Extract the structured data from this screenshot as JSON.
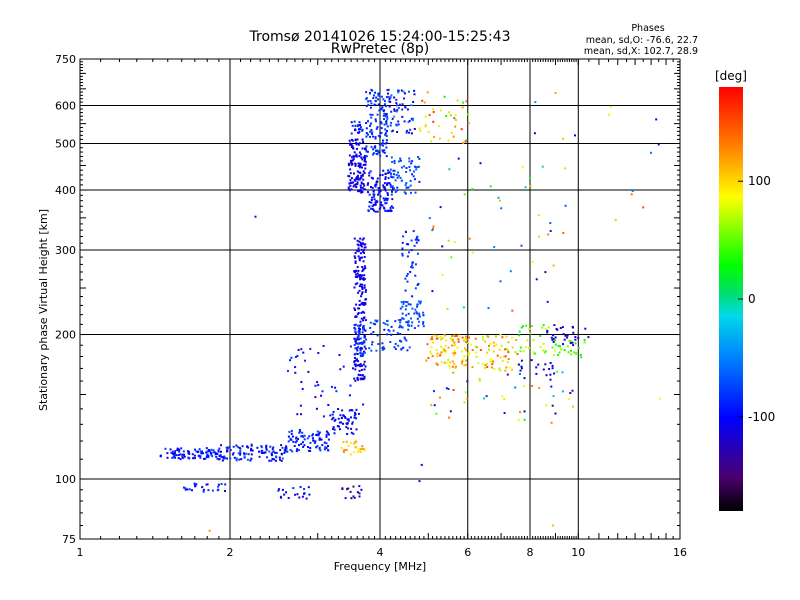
{
  "chart_data": {
    "type": "scatter",
    "title": "Tromsø 20141026 15:24:00-15:25:43",
    "subtitle": "RwPretec (8p)",
    "xlabel": "Frequency [MHz]",
    "ylabel": "Stationary phase Virtual Height [km]",
    "x_scale": "log",
    "y_scale": "log",
    "xlim": [
      1,
      16
    ],
    "ylim": [
      75,
      750
    ],
    "x_ticks": [
      1,
      2,
      4,
      6,
      8,
      10,
      16
    ],
    "x_tick_labels": [
      "1",
      "2",
      "4",
      "6",
      "8",
      "10",
      "16"
    ],
    "y_ticks": [
      75,
      100,
      200,
      300,
      400,
      500,
      600,
      750
    ],
    "y_tick_labels": [
      "75",
      "100",
      "200",
      "300",
      "400",
      "500",
      "600",
      "750"
    ],
    "grid": true,
    "stats_block": {
      "heading": "Phases",
      "line_o": "mean, sd,O: -76.6, 22.7",
      "line_x": "mean, sd,X: 102.7, 28.9"
    },
    "colorbar": {
      "label": "[deg]",
      "range": [
        -180,
        180
      ],
      "ticks": [
        100,
        0,
        -100
      ],
      "tick_labels": [
        "100",
        "0",
        "-100"
      ]
    },
    "point_clusters": [
      {
        "x": [
          1.45,
          1.9
        ],
        "y": [
          110,
          116
        ],
        "phase": [
          -70,
          -115
        ],
        "count": 90
      },
      {
        "x": [
          1.9,
          2.6
        ],
        "y": [
          109,
          118
        ],
        "phase": [
          -60,
          -130
        ],
        "count": 110
      },
      {
        "x": [
          2.6,
          3.2
        ],
        "y": [
          114,
          127
        ],
        "phase": [
          -70,
          -110
        ],
        "count": 80
      },
      {
        "x": [
          3.2,
          3.6
        ],
        "y": [
          124,
          140
        ],
        "phase": [
          -90,
          -115
        ],
        "count": 50
      },
      {
        "x": [
          3.35,
          3.75
        ],
        "y": [
          112,
          120
        ],
        "phase": [
          90,
          135
        ],
        "count": 25
      },
      {
        "x": [
          1.6,
          1.98
        ],
        "y": [
          93,
          98
        ],
        "phase": [
          -70,
          -115
        ],
        "count": 25
      },
      {
        "x": [
          2.5,
          2.9
        ],
        "y": [
          91,
          98
        ],
        "phase": [
          -80,
          -120
        ],
        "count": 20
      },
      {
        "x": [
          3.35,
          3.7
        ],
        "y": [
          91,
          97
        ],
        "phase": [
          -90,
          -170
        ],
        "count": 15
      },
      {
        "x": [
          2.6,
          3.7
        ],
        "y": [
          135,
          190
        ],
        "phase": [
          -80,
          -130
        ],
        "count": 45
      },
      {
        "x": [
          3.55,
          3.75
        ],
        "y": [
          160,
          320
        ],
        "phase": [
          -100,
          -120
        ],
        "count": 200
      },
      {
        "x": [
          3.55,
          3.75
        ],
        "y": [
          180,
          210
        ],
        "phase": [
          -70,
          -85
        ],
        "count": 40
      },
      {
        "x": [
          3.8,
          4.6
        ],
        "y": [
          185,
          215
        ],
        "phase": [
          -60,
          -90
        ],
        "count": 60
      },
      {
        "x": [
          4.4,
          4.9
        ],
        "y": [
          205,
          235
        ],
        "phase": [
          -60,
          -80
        ],
        "count": 50
      },
      {
        "x": [
          4.4,
          4.8
        ],
        "y": [
          240,
          330
        ],
        "phase": [
          -70,
          -100
        ],
        "count": 40
      },
      {
        "x": [
          4.95,
          6.0
        ],
        "y": [
          170,
          200
        ],
        "phase": [
          70,
          150
        ],
        "count": 90
      },
      {
        "x": [
          6.0,
          7.6
        ],
        "y": [
          168,
          200
        ],
        "phase": [
          60,
          150
        ],
        "count": 70
      },
      {
        "x": [
          7.6,
          9.4
        ],
        "y": [
          180,
          210
        ],
        "phase": [
          20,
          80
        ],
        "count": 40
      },
      {
        "x": [
          8.6,
          10.6
        ],
        "y": [
          190,
          210
        ],
        "phase": [
          -140,
          -100
        ],
        "count": 30
      },
      {
        "x": [
          9.5,
          10.4
        ],
        "y": [
          178,
          195
        ],
        "phase": [
          20,
          60
        ],
        "count": 15
      },
      {
        "x": [
          7.6,
          9.0
        ],
        "y": [
          160,
          180
        ],
        "phase": [
          -130,
          -100
        ],
        "count": 20
      },
      {
        "x": [
          3.45,
          3.75
        ],
        "y": [
          395,
          510
        ],
        "phase": [
          -100,
          -120
        ],
        "count": 130
      },
      {
        "x": [
          3.5,
          3.7
        ],
        "y": [
          520,
          560
        ],
        "phase": [
          -80,
          -110
        ],
        "count": 20
      },
      {
        "x": [
          3.78,
          4.25
        ],
        "y": [
          360,
          440
        ],
        "phase": [
          -85,
          -115
        ],
        "count": 110
      },
      {
        "x": [
          4.2,
          4.8
        ],
        "y": [
          390,
          470
        ],
        "phase": [
          -60,
          -90
        ],
        "count": 60
      },
      {
        "x": [
          3.75,
          4.15
        ],
        "y": [
          470,
          650
        ],
        "phase": [
          -70,
          -95
        ],
        "count": 120
      },
      {
        "x": [
          4.1,
          4.7
        ],
        "y": [
          520,
          650
        ],
        "phase": [
          -40,
          -130
        ],
        "count": 70
      },
      {
        "x": [
          4.8,
          6.1
        ],
        "y": [
          500,
          650
        ],
        "phase": [
          20,
          160
        ],
        "count": 40
      },
      {
        "x": [
          5.0,
          9.5
        ],
        "y": [
          220,
          480
        ],
        "phase": [
          -140,
          150
        ],
        "count": 45
      },
      {
        "x": [
          5.0,
          10.0
        ],
        "y": [
          130,
          170
        ],
        "phase": [
          -150,
          160
        ],
        "count": 45
      },
      {
        "x": [
          8.0,
          14.5
        ],
        "y": [
          300,
          650
        ],
        "phase": [
          -110,
          130
        ],
        "count": 12
      }
    ],
    "notable_points": [
      {
        "x": 2.25,
        "y": 352,
        "phase": -120
      },
      {
        "x": 4.8,
        "y": 99,
        "phase": -115
      },
      {
        "x": 4.85,
        "y": 107,
        "phase": -100
      },
      {
        "x": 1.82,
        "y": 78,
        "phase": 120
      },
      {
        "x": 8.9,
        "y": 80,
        "phase": 110
      },
      {
        "x": 14.5,
        "y": 498,
        "phase": -125
      },
      {
        "x": 12.8,
        "y": 392,
        "phase": 140
      },
      {
        "x": 13.5,
        "y": 368,
        "phase": 150
      },
      {
        "x": 8.2,
        "y": 610,
        "phase": -40
      },
      {
        "x": 9.0,
        "y": 637,
        "phase": 120
      },
      {
        "x": 14.6,
        "y": 147,
        "phase": 90
      }
    ]
  }
}
